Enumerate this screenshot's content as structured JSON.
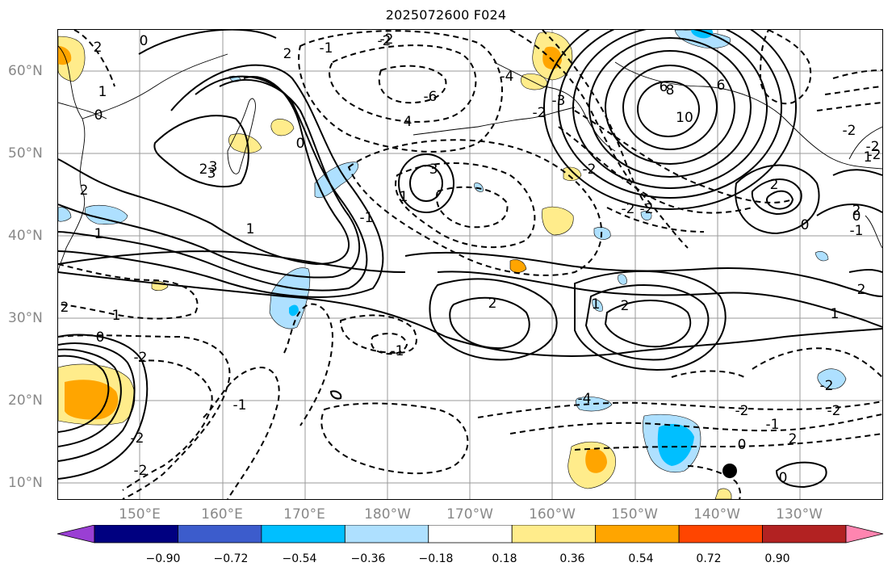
{
  "title": "2025072600 F024",
  "axes": {
    "lat_labels": [
      "60°N",
      "50°N",
      "40°N",
      "30°N",
      "20°N",
      "10°N"
    ],
    "lon_labels": [
      "150°E",
      "160°E",
      "170°E",
      "180°W",
      "170°W",
      "160°W",
      "150°W",
      "140°W",
      "130°W"
    ]
  },
  "colorbar": {
    "ticks": [
      "−0.90",
      "−0.72",
      "−0.54",
      "−0.36",
      "−0.18",
      "0.18",
      "0.36",
      "0.54",
      "0.72",
      "0.90"
    ],
    "colors": [
      "#9a3fd4",
      "#000080",
      "#3c5ccc",
      "#00bfff",
      "#aee0ff",
      "#ffffff",
      "#ffec8b",
      "#ffa500",
      "#ff4500",
      "#b22222",
      "#ff85b0"
    ]
  },
  "contour_labels": [
    "0",
    "2",
    "1",
    "0",
    "2",
    "3",
    "2",
    "-1",
    "-2",
    "1",
    "0",
    "-2",
    "6",
    "8",
    "10",
    "4",
    "-6",
    "-4",
    "-3",
    "-2",
    "3",
    "1",
    "-1",
    "-2",
    "-2",
    "0",
    "2",
    "-2",
    "1",
    "0",
    "2",
    "1",
    "-2",
    "-1",
    "-2",
    "-2",
    "2",
    "2",
    "1",
    "0",
    "1",
    "-1",
    "-2",
    "-1",
    "0",
    "-2",
    "-2",
    "2",
    "0",
    "-2",
    "2",
    "-1",
    "1",
    "2",
    "3",
    "2",
    "-2",
    "6",
    "-4",
    "-2"
  ]
}
